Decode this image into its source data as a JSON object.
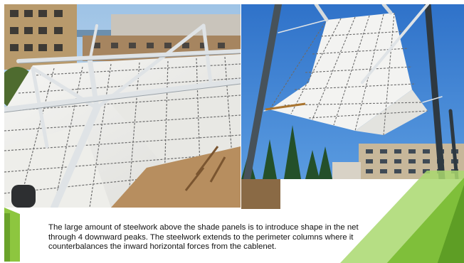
{
  "slide": {
    "caption": "The large amount of steelwork above the shade panels is to introduce shape in the net through 4 downward peaks. The steelwork extends to the perimeter columns where it counterbalances the inward horizontal forces from the cablenet."
  },
  "photos": {
    "left": {
      "subject": "white shade panels on steel frame over cable net, buildings and sea behind"
    },
    "right": {
      "subject": "cablenet shade canopy viewed from below against blue sky with trees and apartments"
    }
  },
  "colors": {
    "accent_green": "#8dc63f",
    "accent_green_dark": "#5e9e25",
    "sky": "#3e82d4",
    "panel": "#f4f4f2",
    "steel": "#d8dde0"
  }
}
